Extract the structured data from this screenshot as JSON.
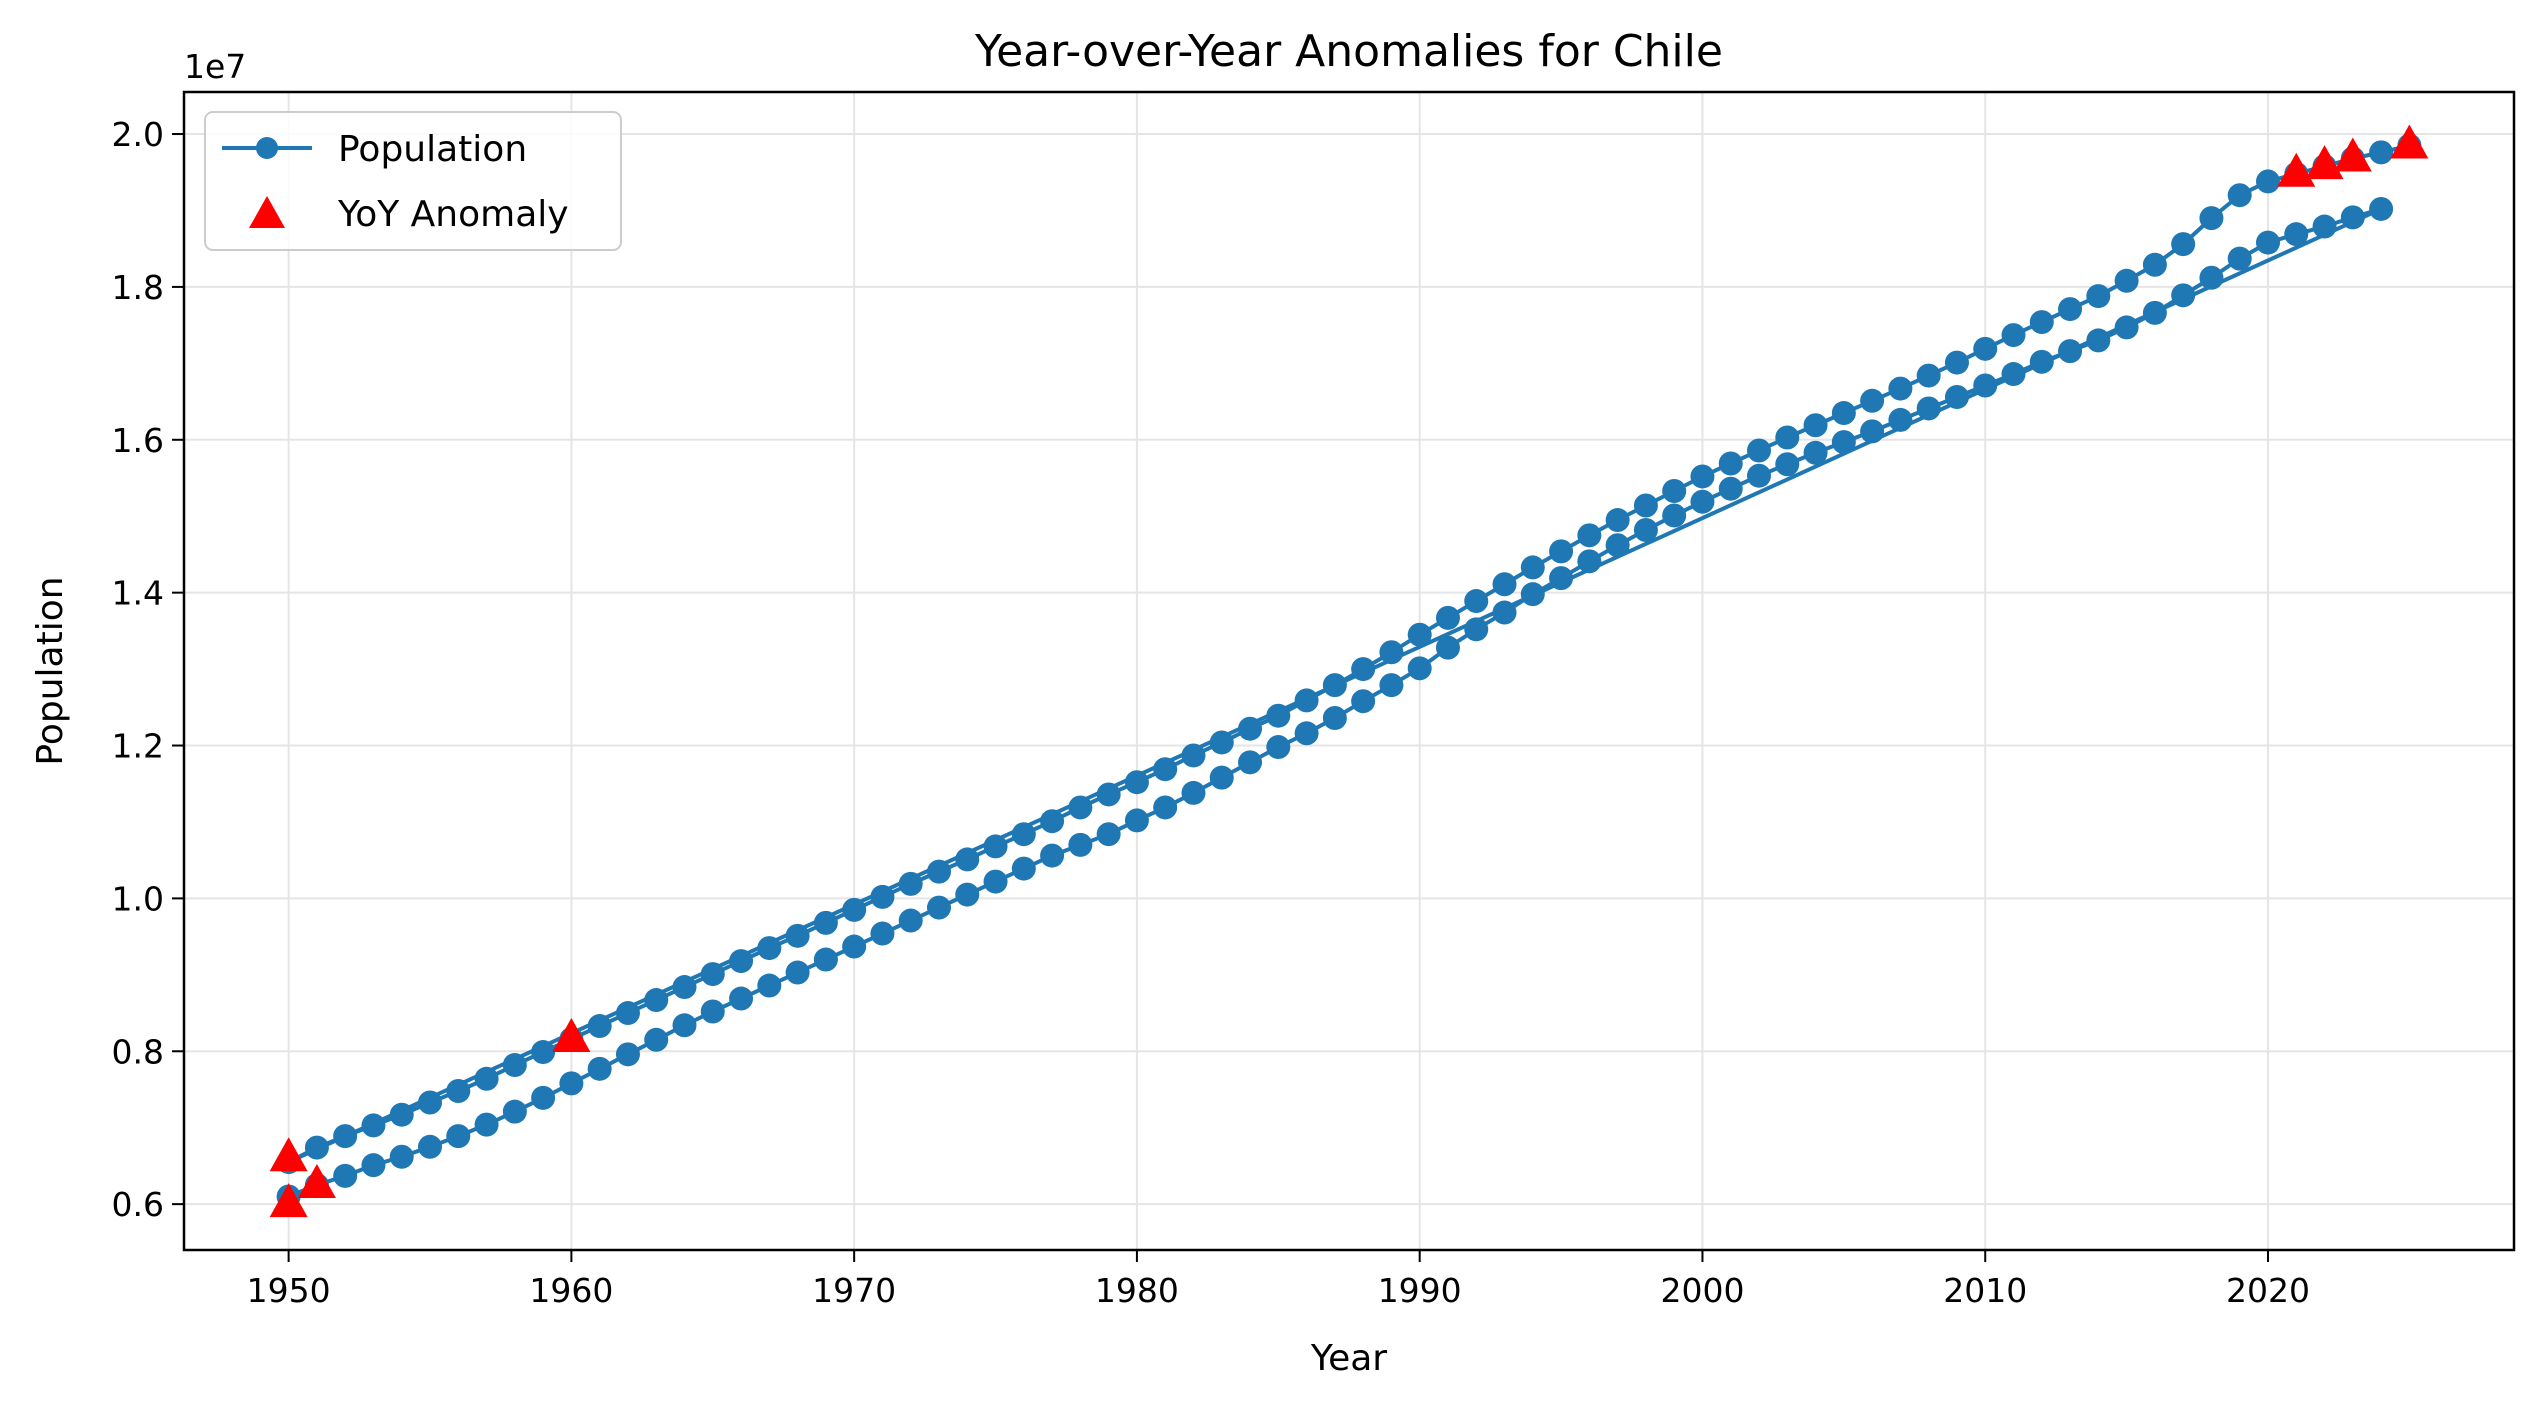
{
  "chart_data": {
    "type": "line",
    "title": "Year-over-Year Anomalies for Chile",
    "xlabel": "Year",
    "ylabel": "Population",
    "y_offset_label": "1e7",
    "xlim": [
      1946.3,
      2028.7
    ],
    "ylim": [
      5400000,
      20550000
    ],
    "x_ticks": [
      1950,
      1960,
      1970,
      1980,
      1990,
      2000,
      2010,
      2020
    ],
    "x_tick_labels": [
      "1950",
      "1960",
      "1970",
      "1980",
      "1990",
      "2000",
      "2010",
      "2020"
    ],
    "y_ticks": [
      6000000,
      8000000,
      10000000,
      12000000,
      14000000,
      16000000,
      18000000,
      20000000
    ],
    "y_tick_labels": [
      "0.6",
      "0.8",
      "1.0",
      "1.2",
      "1.4",
      "1.6",
      "1.8",
      "2.0"
    ],
    "grid": true,
    "legend_position": "top-left",
    "colors": {
      "line": "#1f77b4",
      "anomaly": "#ff0000"
    },
    "series": [
      {
        "name": "Population",
        "marker": "circle",
        "points": [
          [
            1950,
            6100000
          ],
          [
            1951,
            6250000
          ],
          [
            1952,
            6370000
          ],
          [
            1953,
            6510000
          ],
          [
            1954,
            6620000
          ],
          [
            1955,
            6750000
          ],
          [
            1956,
            6890000
          ],
          [
            1957,
            7040000
          ],
          [
            1958,
            7210000
          ],
          [
            1959,
            7390000
          ],
          [
            1960,
            7580000
          ],
          [
            1961,
            7770000
          ],
          [
            1962,
            7960000
          ],
          [
            1963,
            8150000
          ],
          [
            1964,
            8340000
          ],
          [
            1965,
            8520000
          ],
          [
            1966,
            8690000
          ],
          [
            1967,
            8860000
          ],
          [
            1968,
            9030000
          ],
          [
            1969,
            9200000
          ],
          [
            1970,
            9370000
          ],
          [
            1971,
            9540000
          ],
          [
            1972,
            9710000
          ],
          [
            1973,
            9880000
          ],
          [
            1974,
            10050000
          ],
          [
            1975,
            10220000
          ],
          [
            1976,
            10390000
          ],
          [
            1977,
            10560000
          ],
          [
            1978,
            10700000
          ],
          [
            1979,
            10840000
          ],
          [
            1980,
            11020000
          ],
          [
            1981,
            11190000
          ],
          [
            1982,
            11380000
          ],
          [
            1983,
            11580000
          ],
          [
            1984,
            11780000
          ],
          [
            1985,
            11980000
          ],
          [
            1986,
            12160000
          ],
          [
            1987,
            12360000
          ],
          [
            1988,
            12580000
          ],
          [
            1989,
            12790000
          ],
          [
            1990,
            13010000
          ],
          [
            1991,
            13280000
          ],
          [
            1992,
            13520000
          ],
          [
            1993,
            13740000
          ],
          [
            1994,
            13980000
          ],
          [
            1995,
            14190000
          ],
          [
            1996,
            14410000
          ],
          [
            1997,
            14620000
          ],
          [
            1998,
            14820000
          ],
          [
            1999,
            15010000
          ],
          [
            2000,
            15190000
          ],
          [
            2001,
            15360000
          ],
          [
            2002,
            15530000
          ],
          [
            2003,
            15680000
          ],
          [
            2004,
            15830000
          ],
          [
            2005,
            15970000
          ],
          [
            2006,
            16110000
          ],
          [
            2007,
            16260000
          ],
          [
            2008,
            16410000
          ],
          [
            2009,
            16560000
          ],
          [
            2010,
            16710000
          ],
          [
            2011,
            16860000
          ],
          [
            2012,
            17020000
          ],
          [
            2013,
            17160000
          ],
          [
            2014,
            17300000
          ],
          [
            2015,
            17470000
          ],
          [
            2016,
            17660000
          ],
          [
            2017,
            17890000
          ],
          [
            2018,
            18120000
          ],
          [
            2019,
            18370000
          ],
          [
            2020,
            18580000
          ],
          [
            2021,
            18690000
          ],
          [
            2022,
            18790000
          ],
          [
            2023,
            18910000
          ],
          [
            2024,
            19020000
          ],
          [
            1950,
            6550000
          ],
          [
            1951,
            6740000
          ],
          [
            1952,
            6890000
          ],
          [
            1953,
            7030000
          ],
          [
            1954,
            7170000
          ],
          [
            1955,
            7330000
          ],
          [
            1956,
            7480000
          ],
          [
            1957,
            7640000
          ],
          [
            1958,
            7820000
          ],
          [
            1959,
            7990000
          ],
          [
            1960,
            8160000
          ],
          [
            1961,
            8330000
          ],
          [
            1962,
            8500000
          ],
          [
            1963,
            8670000
          ],
          [
            1964,
            8840000
          ],
          [
            1965,
            9010000
          ],
          [
            1966,
            9180000
          ],
          [
            1967,
            9350000
          ],
          [
            1968,
            9510000
          ],
          [
            1969,
            9680000
          ],
          [
            1970,
            9850000
          ],
          [
            1971,
            10020000
          ],
          [
            1972,
            10190000
          ],
          [
            1973,
            10350000
          ],
          [
            1974,
            10510000
          ],
          [
            1975,
            10680000
          ],
          [
            1976,
            10840000
          ],
          [
            1977,
            11010000
          ],
          [
            1978,
            11190000
          ],
          [
            1979,
            11360000
          ],
          [
            1980,
            11520000
          ],
          [
            1981,
            11690000
          ],
          [
            1982,
            11870000
          ],
          [
            1983,
            12040000
          ],
          [
            1984,
            12220000
          ],
          [
            1985,
            12390000
          ],
          [
            1986,
            12590000
          ],
          [
            1987,
            12790000
          ],
          [
            1988,
            13000000
          ],
          [
            1989,
            13220000
          ],
          [
            1990,
            13450000
          ],
          [
            1991,
            13670000
          ],
          [
            1992,
            13890000
          ],
          [
            1993,
            14110000
          ],
          [
            1994,
            14330000
          ],
          [
            1995,
            14540000
          ],
          [
            1996,
            14750000
          ],
          [
            1997,
            14950000
          ],
          [
            1998,
            15140000
          ],
          [
            1999,
            15330000
          ],
          [
            2000,
            15520000
          ],
          [
            2001,
            15690000
          ],
          [
            2002,
            15860000
          ],
          [
            2003,
            16030000
          ],
          [
            2004,
            16190000
          ],
          [
            2005,
            16350000
          ],
          [
            2006,
            16510000
          ],
          [
            2007,
            16670000
          ],
          [
            2008,
            16840000
          ],
          [
            2009,
            17010000
          ],
          [
            2010,
            17190000
          ],
          [
            2011,
            17370000
          ],
          [
            2012,
            17540000
          ],
          [
            2013,
            17710000
          ],
          [
            2014,
            17880000
          ],
          [
            2015,
            18080000
          ],
          [
            2016,
            18290000
          ],
          [
            2017,
            18560000
          ],
          [
            2018,
            18900000
          ],
          [
            2019,
            19200000
          ],
          [
            2020,
            19380000
          ],
          [
            2021,
            19480000
          ],
          [
            2022,
            19580000
          ],
          [
            2023,
            19680000
          ],
          [
            2024,
            19760000
          ],
          [
            2025,
            19850000
          ]
        ]
      },
      {
        "name": "YoY Anomaly",
        "marker": "triangle",
        "points": [
          [
            1950,
            6000000
          ],
          [
            1950,
            6600000
          ],
          [
            1951,
            6250000
          ],
          [
            1960,
            8160000
          ],
          [
            2021,
            19480000
          ],
          [
            2022,
            19580000
          ],
          [
            2023,
            19680000
          ],
          [
            2025,
            19850000
          ]
        ]
      }
    ]
  }
}
